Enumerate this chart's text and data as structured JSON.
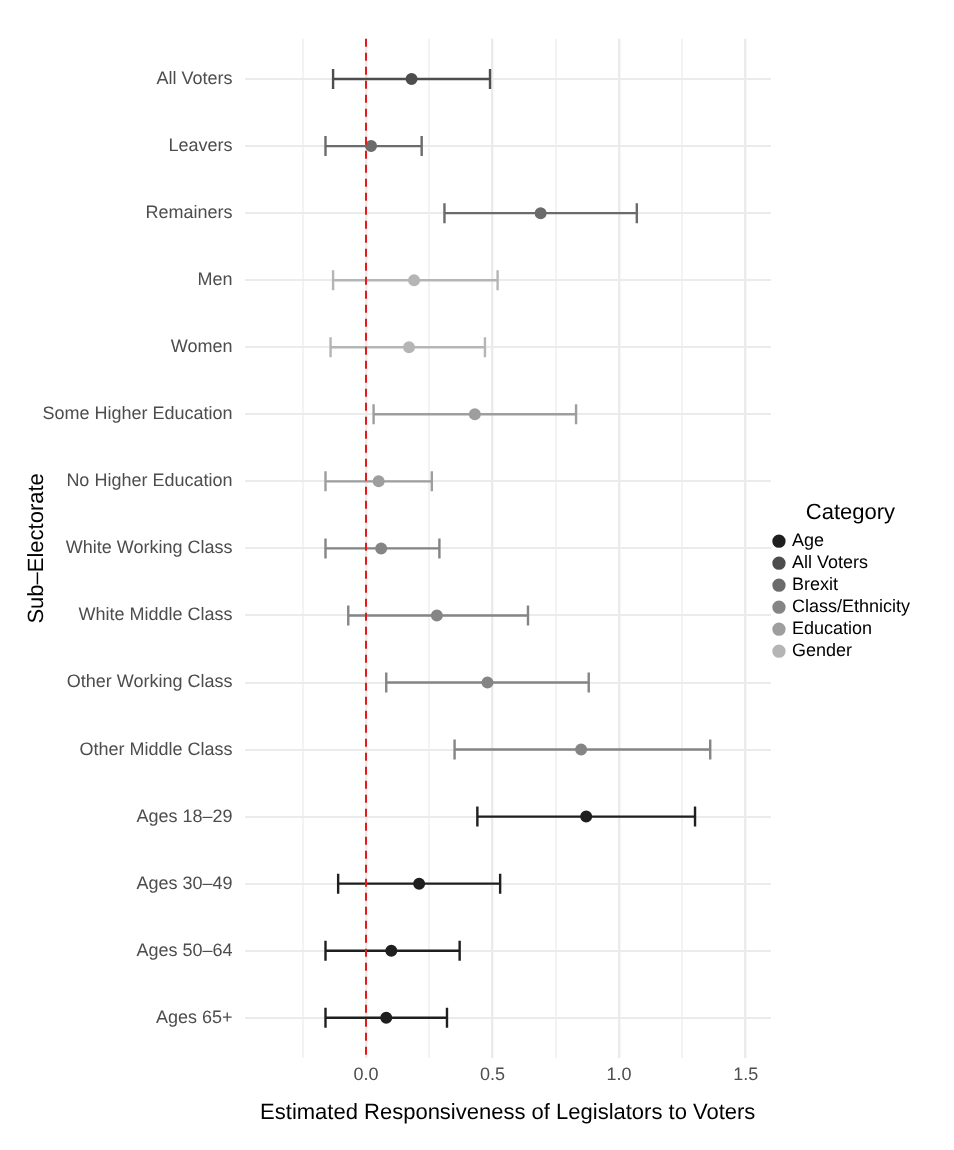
{
  "chart_data": {
    "type": "scatter",
    "orientation": "horizontal",
    "xlabel": "Estimated Responsiveness of Legislators to Voters",
    "ylabel": "Sub–Electorate",
    "legend_title": "Category",
    "legend": "right",
    "grid": true,
    "marker": "circle",
    "categories": [
      "All Voters",
      "Leavers",
      "Remainers",
      "Men",
      "Women",
      "Some Higher Education",
      "No Higher Education",
      "White Working Class",
      "White Middle Class",
      "Other Working Class",
      "Other Middle Class",
      "Ages 18–29",
      "Ages 30–49",
      "Ages 50–64",
      "Ages 65+"
    ],
    "xlim": [
      -0.48,
      1.6
    ],
    "xticks": [
      {
        "value": -0.25,
        "label": null
      },
      {
        "value": 0,
        "label": "0.0"
      },
      {
        "value": 0.25,
        "label": null
      },
      0.5,
      {
        "value": 0.75,
        "label": null
      },
      {
        "value": 1,
        "label": "1.0"
      },
      {
        "value": 1.25,
        "label": null
      },
      1.5
    ],
    "ref_lines": [
      {
        "axis": "x",
        "value": 0,
        "color": "#e31a1c",
        "line_style": "dashed"
      }
    ],
    "series": [
      {
        "name": "Age",
        "color": "#1f1f1f",
        "values": [
          null,
          null,
          null,
          null,
          null,
          null,
          null,
          null,
          null,
          null,
          null,
          0.87,
          0.21,
          0.1,
          0.08
        ],
        "errors": [
          null,
          null,
          null,
          null,
          null,
          null,
          null,
          null,
          null,
          null,
          null,
          [
            0.44,
            1.3
          ],
          [
            -0.11,
            0.53
          ],
          [
            -0.16,
            0.37
          ],
          [
            -0.16,
            0.32
          ]
        ]
      },
      {
        "name": "All Voters",
        "color": "#4d4d4d",
        "values": [
          0.18,
          null,
          null,
          null,
          null,
          null,
          null,
          null,
          null,
          null,
          null,
          null,
          null,
          null,
          null
        ],
        "errors": [
          [
            -0.13,
            0.49
          ],
          null,
          null,
          null,
          null,
          null,
          null,
          null,
          null,
          null,
          null,
          null,
          null,
          null,
          null
        ]
      },
      {
        "name": "Brexit",
        "color": "#6b6b6b",
        "values": [
          null,
          0.02,
          0.69,
          null,
          null,
          null,
          null,
          null,
          null,
          null,
          null,
          null,
          null,
          null,
          null
        ],
        "errors": [
          null,
          [
            -0.16,
            0.22
          ],
          [
            0.31,
            1.07
          ],
          null,
          null,
          null,
          null,
          null,
          null,
          null,
          null,
          null,
          null,
          null,
          null
        ]
      },
      {
        "name": "Class/Ethnicity",
        "color": "#858585",
        "values": [
          null,
          null,
          null,
          null,
          null,
          null,
          null,
          0.06,
          0.28,
          0.48,
          0.85,
          null,
          null,
          null,
          null
        ],
        "errors": [
          null,
          null,
          null,
          null,
          null,
          null,
          null,
          [
            -0.16,
            0.29
          ],
          [
            -0.07,
            0.64
          ],
          [
            0.08,
            0.88
          ],
          [
            0.35,
            1.36
          ],
          null,
          null,
          null,
          null
        ]
      },
      {
        "name": "Education",
        "color": "#9e9e9e",
        "values": [
          null,
          null,
          null,
          null,
          null,
          0.43,
          0.05,
          null,
          null,
          null,
          null,
          null,
          null,
          null,
          null
        ],
        "errors": [
          null,
          null,
          null,
          null,
          null,
          [
            0.03,
            0.83
          ],
          [
            -0.16,
            0.26
          ],
          null,
          null,
          null,
          null,
          null,
          null,
          null,
          null
        ]
      },
      {
        "name": "Gender",
        "color": "#b5b5b5",
        "values": [
          null,
          null,
          null,
          0.19,
          0.17,
          null,
          null,
          null,
          null,
          null,
          null,
          null,
          null,
          null,
          null
        ],
        "errors": [
          null,
          null,
          null,
          [
            -0.13,
            0.52
          ],
          [
            -0.14,
            0.47
          ],
          null,
          null,
          null,
          null,
          null,
          null,
          null,
          null,
          null,
          null
        ]
      }
    ]
  }
}
